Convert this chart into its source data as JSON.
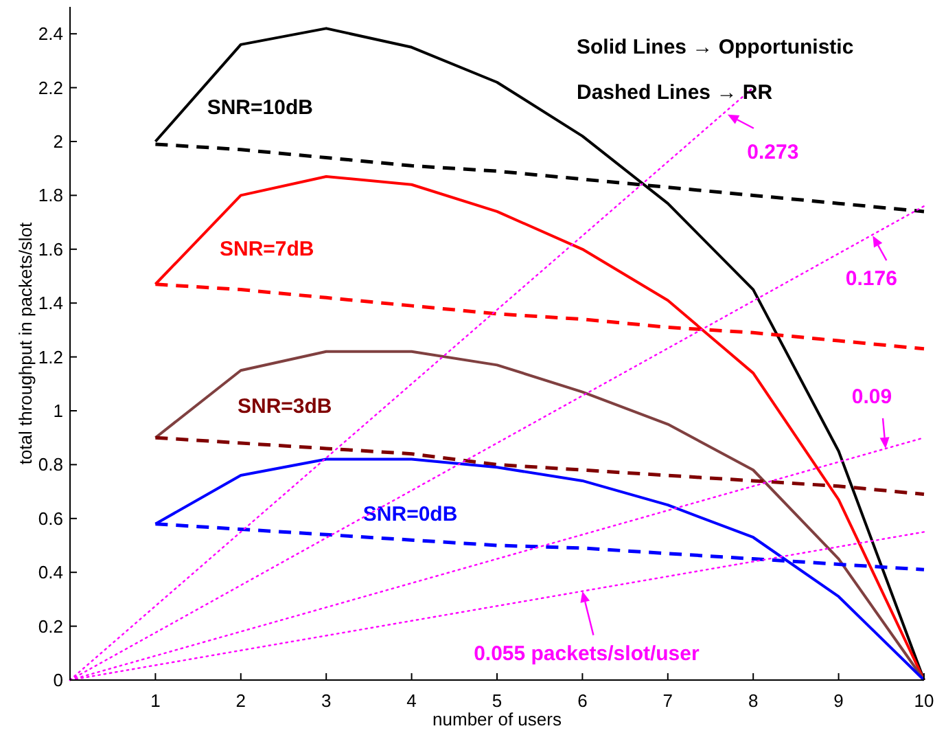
{
  "chart_data": {
    "type": "line",
    "xlabel": "number of users",
    "ylabel": "total throughput in packets/slot",
    "x": [
      1,
      2,
      3,
      4,
      5,
      6,
      7,
      8,
      9,
      10
    ],
    "xlim": [
      0,
      10
    ],
    "xticks": [
      1,
      2,
      3,
      4,
      5,
      6,
      7,
      8,
      9,
      10
    ],
    "ylim": [
      0,
      2.5
    ],
    "yticks": [
      0,
      0.2,
      0.4,
      0.6,
      0.8,
      1,
      1.2,
      1.4,
      1.6,
      1.8,
      2,
      2.2,
      2.4
    ],
    "series": [
      {
        "color": "#000000",
        "line_style": "solid",
        "values": [
          2.0,
          2.36,
          2.42,
          2.35,
          2.22,
          2.02,
          1.77,
          1.45,
          0.85,
          0
        ]
      },
      {
        "name": "SNR=10dB",
        "color": "#000000",
        "line_style": "dashed",
        "values": [
          1.99,
          1.97,
          1.94,
          1.91,
          1.89,
          1.86,
          1.83,
          1.8,
          1.77,
          1.74
        ]
      },
      {
        "color": "#ff0000",
        "line_style": "solid",
        "values": [
          1.47,
          1.8,
          1.87,
          1.84,
          1.74,
          1.6,
          1.41,
          1.14,
          0.67,
          0
        ]
      },
      {
        "name": "SNR=7dB",
        "color": "#ff0000",
        "line_style": "dashed",
        "values": [
          1.47,
          1.45,
          1.42,
          1.39,
          1.36,
          1.34,
          1.31,
          1.29,
          1.26,
          1.23
        ]
      },
      {
        "color": "#804040",
        "line_style": "solid",
        "values": [
          0.9,
          1.15,
          1.22,
          1.22,
          1.17,
          1.07,
          0.95,
          0.78,
          0.45,
          0
        ]
      },
      {
        "name": "SNR=3dB",
        "color": "#800000",
        "line_style": "dashed",
        "values": [
          0.9,
          0.88,
          0.86,
          0.84,
          0.8,
          0.78,
          0.76,
          0.74,
          0.72,
          0.69
        ]
      },
      {
        "color": "#0000ff",
        "line_style": "solid",
        "values": [
          0.58,
          0.76,
          0.82,
          0.82,
          0.79,
          0.74,
          0.65,
          0.53,
          0.31,
          0
        ]
      },
      {
        "name": "SNR=0dB",
        "color": "#0000ff",
        "line_style": "dashed",
        "values": [
          0.58,
          0.56,
          0.54,
          0.52,
          0.5,
          0.49,
          0.47,
          0.45,
          0.43,
          0.41
        ]
      },
      {
        "color": "#ff00ff",
        "line_style": "dotted",
        "x": [
          0,
          8
        ],
        "values": [
          0,
          2.2
        ]
      },
      {
        "color": "#ff00ff",
        "line_style": "dotted",
        "x": [
          0,
          10
        ],
        "values": [
          0,
          1.76
        ]
      },
      {
        "color": "#ff00ff",
        "line_style": "dotted",
        "x": [
          0,
          10
        ],
        "values": [
          0,
          0.9
        ]
      },
      {
        "color": "#ff00ff",
        "line_style": "dotted",
        "x": [
          0,
          10
        ],
        "values": [
          0,
          0.55
        ]
      }
    ],
    "annotations": [
      "Solid Lines → Opportunistic",
      "Dashed Lines → RR",
      {
        "text": "0.273",
        "x": 7.7,
        "y": 2.1
      },
      {
        "text": "0.176",
        "x": 9.4,
        "y": 1.65
      },
      {
        "text": "0.09",
        "x": 9.55,
        "y": 0.86
      },
      {
        "text": "0.055 packets/slot/user",
        "x": 6,
        "y": 0.33
      }
    ]
  }
}
